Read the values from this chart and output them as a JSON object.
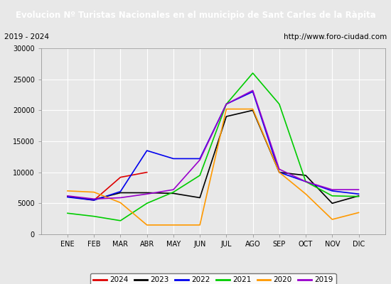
{
  "title": "Evolucion Nº Turistas Nacionales en el municipio de Sant Carles de la Ràpita",
  "subtitle_left": "2019 - 2024",
  "subtitle_right": "http://www.foro-ciudad.com",
  "months": [
    "ENE",
    "FEB",
    "MAR",
    "ABR",
    "MAY",
    "JUN",
    "JUL",
    "AGO",
    "SEP",
    "OCT",
    "NOV",
    "DIC"
  ],
  "ylim": [
    0,
    30000
  ],
  "yticks": [
    0,
    5000,
    10000,
    15000,
    20000,
    25000,
    30000
  ],
  "series": {
    "2024": {
      "color": "#dd0000",
      "data": [
        6100,
        5500,
        9200,
        10000,
        null,
        null,
        null,
        null,
        null,
        null,
        null,
        null
      ]
    },
    "2023": {
      "color": "#000000",
      "data": [
        6100,
        5600,
        6700,
        6700,
        6600,
        5900,
        19000,
        20000,
        10000,
        9500,
        5000,
        6200
      ]
    },
    "2022": {
      "color": "#0000ee",
      "data": [
        6000,
        5500,
        6900,
        13500,
        12200,
        12200,
        21000,
        23000,
        10000,
        8500,
        7000,
        6500
      ]
    },
    "2021": {
      "color": "#00cc00",
      "data": [
        3400,
        2900,
        2200,
        5000,
        6800,
        9500,
        21000,
        26000,
        21000,
        8500,
        6200,
        6100
      ]
    },
    "2020": {
      "color": "#ff9900",
      "data": [
        7000,
        6800,
        5100,
        1500,
        1500,
        1500,
        20200,
        20200,
        10000,
        6500,
        2400,
        3500
      ]
    },
    "2019": {
      "color": "#9900cc",
      "data": [
        6200,
        5700,
        5900,
        6500,
        7200,
        12000,
        21000,
        23200,
        10500,
        8500,
        7200,
        7200
      ]
    }
  },
  "background_color": "#e8e8e8",
  "plot_bg_color": "#e8e8e8",
  "title_bg_color": "#4169b0",
  "title_color": "#ffffff",
  "grid_color": "#ffffff",
  "legend_order": [
    "2024",
    "2023",
    "2022",
    "2021",
    "2020",
    "2019"
  ]
}
